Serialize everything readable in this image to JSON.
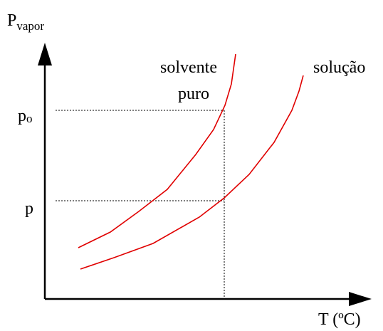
{
  "y_axis": {
    "label": "P",
    "label_sub": "vapor"
  },
  "x_axis": {
    "label": "T (ºC)"
  },
  "levels": [
    {
      "label": "p",
      "label_sub": "o"
    },
    {
      "label": "p"
    }
  ],
  "curves": [
    {
      "label_lines": [
        "solvente",
        "puro"
      ]
    },
    {
      "label": "solução"
    }
  ]
}
